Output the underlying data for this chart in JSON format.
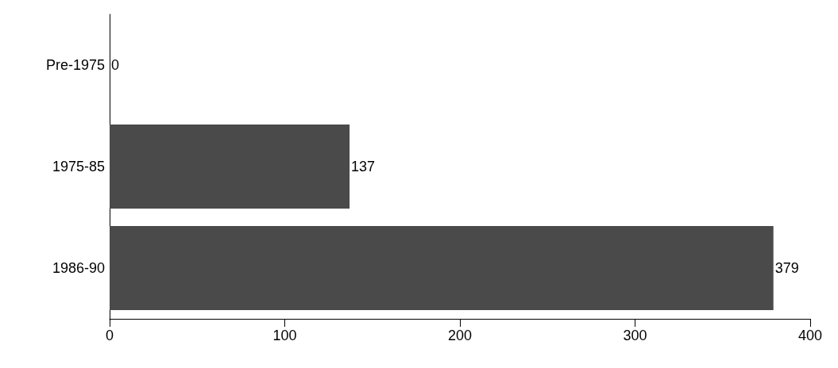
{
  "chart_data": {
    "type": "bar",
    "orientation": "horizontal",
    "categories": [
      "Pre-1975",
      "1975-85",
      "1986-90"
    ],
    "values": [
      0,
      137,
      379
    ],
    "color": "#4a4a4a",
    "xlim": [
      0,
      400
    ],
    "xticks": [
      0,
      100,
      200,
      300,
      400
    ],
    "data_labels": true
  }
}
